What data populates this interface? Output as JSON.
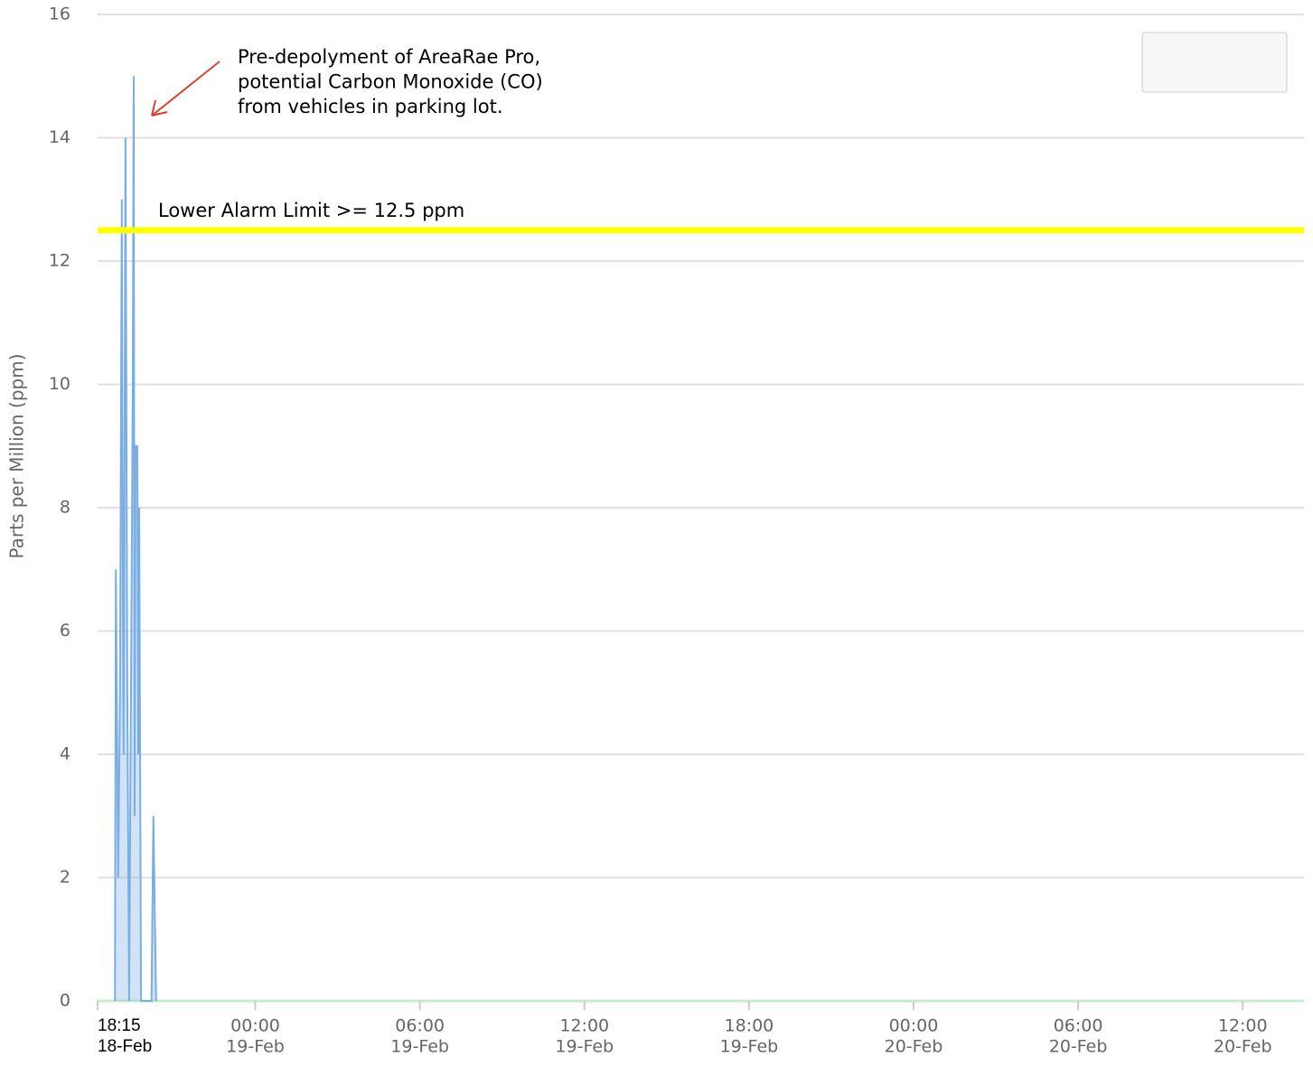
{
  "chart_data": {
    "type": "line",
    "y_label": "Parts per Million (ppm)",
    "x": [
      "18-Feb 18:53",
      "18-Feb 18:55",
      "18-Feb 18:57",
      "18-Feb 19:00",
      "18-Feb 19:04",
      "18-Feb 19:08",
      "18-Feb 19:10",
      "18-Feb 19:12",
      "18-Feb 19:16",
      "18-Feb 19:20",
      "18-Feb 19:24",
      "18-Feb 19:28",
      "18-Feb 19:32",
      "18-Feb 19:34",
      "18-Feb 19:36",
      "18-Feb 19:38",
      "18-Feb 19:42",
      "18-Feb 19:44",
      "18-Feb 19:46",
      "18-Feb 19:50",
      "18-Feb 20:13",
      "18-Feb 20:17",
      "18-Feb 20:21",
      "18-Feb 20:23"
    ],
    "series": [
      {
        "color": "#7aaee3",
        "values": [
          0,
          7,
          5,
          2,
          5,
          13,
          7,
          4,
          14,
          5,
          0,
          5,
          10,
          15,
          3,
          9,
          9,
          4,
          8,
          0,
          0,
          3,
          1,
          0
        ]
      }
    ],
    "xlim": [
      "18-Feb 18:15",
      "20-Feb 14:14"
    ],
    "xticks": [
      {
        "value": "18-Feb 18:15",
        "label": [
          "18:15",
          "18-Feb"
        ]
      },
      {
        "value": "19-Feb 00:00",
        "label": [
          "00:00",
          "19-Feb"
        ]
      },
      {
        "value": "19-Feb 06:00",
        "label": [
          "06:00",
          "19-Feb"
        ]
      },
      {
        "value": "19-Feb 12:00",
        "label": [
          "12:00",
          "19-Feb"
        ]
      },
      {
        "value": "19-Feb 18:00",
        "label": [
          "18:00",
          "19-Feb"
        ]
      },
      {
        "value": "20-Feb 00:00",
        "label": [
          "00:00",
          "20-Feb"
        ]
      },
      {
        "value": "20-Feb 06:00",
        "label": [
          "06:00",
          "20-Feb"
        ]
      },
      {
        "value": "20-Feb 12:00",
        "label": [
          "12:00",
          "20-Feb"
        ]
      }
    ],
    "ylim": [
      0,
      16
    ],
    "yticks": [
      0,
      2,
      4,
      6,
      8,
      10,
      12,
      14,
      16
    ],
    "grid": true,
    "threshold": {
      "value": 12.5,
      "label": "Lower Alarm Limit >= 12.5 ppm",
      "color": "#ffff00"
    },
    "annotation": {
      "lines": [
        "Pre-depolyment of AreaRae Pro,",
        "potential Carbon Monoxide (CO)",
        "from vehicles in parking lot."
      ],
      "color": "#d9412b"
    }
  }
}
